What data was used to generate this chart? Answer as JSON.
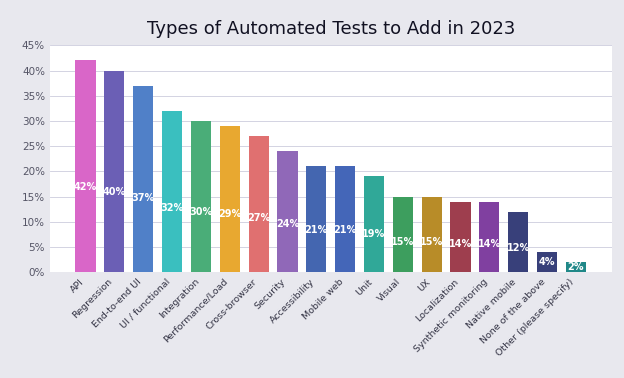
{
  "title": "Types of Automated Tests to Add in 2023",
  "categories": [
    "API",
    "Regression",
    "End-to-end UI",
    "UI / functional",
    "Integration",
    "Performance/Load",
    "Cross-browser",
    "Security",
    "Accessibility",
    "Mobile web",
    "Unit",
    "Visual",
    "UX",
    "Localization",
    "Synthetic monitoring",
    "Native mobile",
    "None of the above",
    "Other (please specify)"
  ],
  "values": [
    42,
    40,
    37,
    32,
    30,
    29,
    27,
    24,
    21,
    21,
    19,
    15,
    15,
    14,
    14,
    12,
    4,
    2
  ],
  "bar_colors": [
    "#d966c8",
    "#6b5fb5",
    "#5080c8",
    "#3abfbf",
    "#4aad78",
    "#e8a830",
    "#e07070",
    "#9068b8",
    "#4466b0",
    "#4466b8",
    "#30a898",
    "#3d9e5e",
    "#b88c28",
    "#9e3e4e",
    "#8040a0",
    "#38407a",
    "#38407a",
    "#208888"
  ],
  "ylim": [
    0,
    45
  ],
  "ytick_values": [
    0,
    5,
    10,
    15,
    20,
    25,
    30,
    35,
    40,
    45
  ],
  "ytick_labels": [
    "0%",
    "5%",
    "10%",
    "15%",
    "20%",
    "25%",
    "30%",
    "35%",
    "40%",
    "45%"
  ],
  "outer_bg": "#e8e8ee",
  "plot_bg": "#ffffff",
  "title_fontsize": 13,
  "label_fontsize": 6.8,
  "value_fontsize": 7.0
}
